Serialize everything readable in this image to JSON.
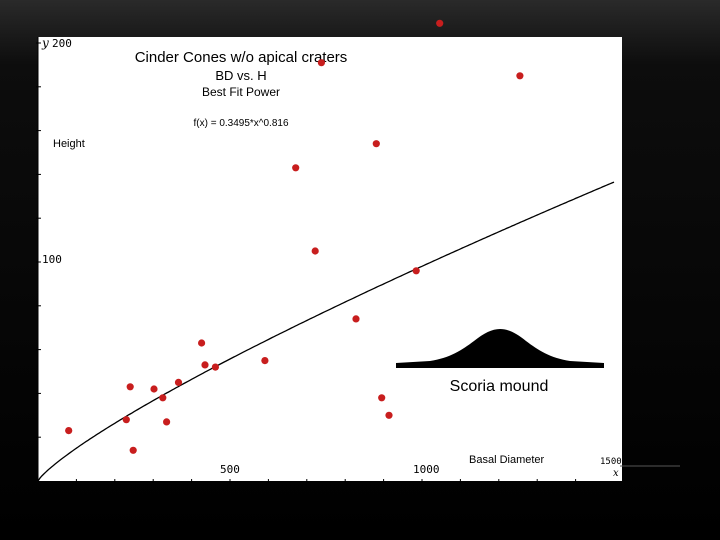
{
  "chart_data": {
    "type": "scatter",
    "title": "Cinder Cones w/o apical craters",
    "subtitle": "BD vs. H",
    "fit_label": "Best Fit Power",
    "equation": "f(x) = 0.3495*x^0.816",
    "fit": {
      "a": 0.3495,
      "b": 0.816
    },
    "xlabel": "Basal Diameter",
    "ylabel": "Height",
    "x_var": "x",
    "y_var": "y",
    "xlim": [
      0,
      1500
    ],
    "ylim": [
      0,
      200
    ],
    "x_ticks": [
      {
        "value": 500,
        "label": "500"
      },
      {
        "value": 1000,
        "label": "1000"
      },
      {
        "value": 1500,
        "label": "1500"
      }
    ],
    "y_ticks": [
      {
        "value": 100,
        "label": "100"
      },
      {
        "value": 200,
        "label": "200"
      }
    ],
    "marker_color": "#c81e1e",
    "curve_color": "#000000",
    "points": [
      [
        80,
        23
      ],
      [
        230,
        28
      ],
      [
        240,
        43
      ],
      [
        248,
        14
      ],
      [
        302,
        42
      ],
      [
        325,
        38
      ],
      [
        335,
        27
      ],
      [
        366,
        45
      ],
      [
        426,
        63
      ],
      [
        435,
        53
      ],
      [
        462,
        52
      ],
      [
        591,
        55
      ],
      [
        671,
        143
      ],
      [
        722,
        105
      ],
      [
        738,
        191
      ],
      [
        828,
        74
      ],
      [
        881,
        154
      ],
      [
        895,
        38
      ],
      [
        914,
        30
      ],
      [
        985,
        96
      ],
      [
        1046,
        209
      ],
      [
        1255,
        185
      ]
    ]
  },
  "inset": {
    "caption": "Scoria mound"
  }
}
